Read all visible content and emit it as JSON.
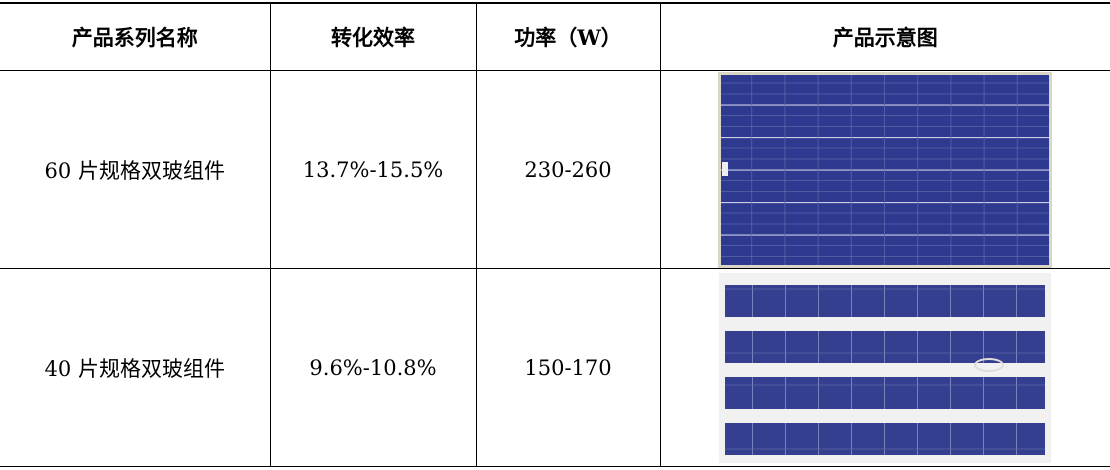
{
  "table": {
    "header": [
      "产品系列名称",
      "转化效率",
      "功率（W）",
      "产品示意图"
    ],
    "rows": [
      [
        "60 片规格双玻组件",
        "13.7%-15.5%",
        "230-260"
      ],
      [
        "40 片规格双玻组件",
        "9.6%-10.8%",
        "150-170"
      ]
    ]
  }
}
